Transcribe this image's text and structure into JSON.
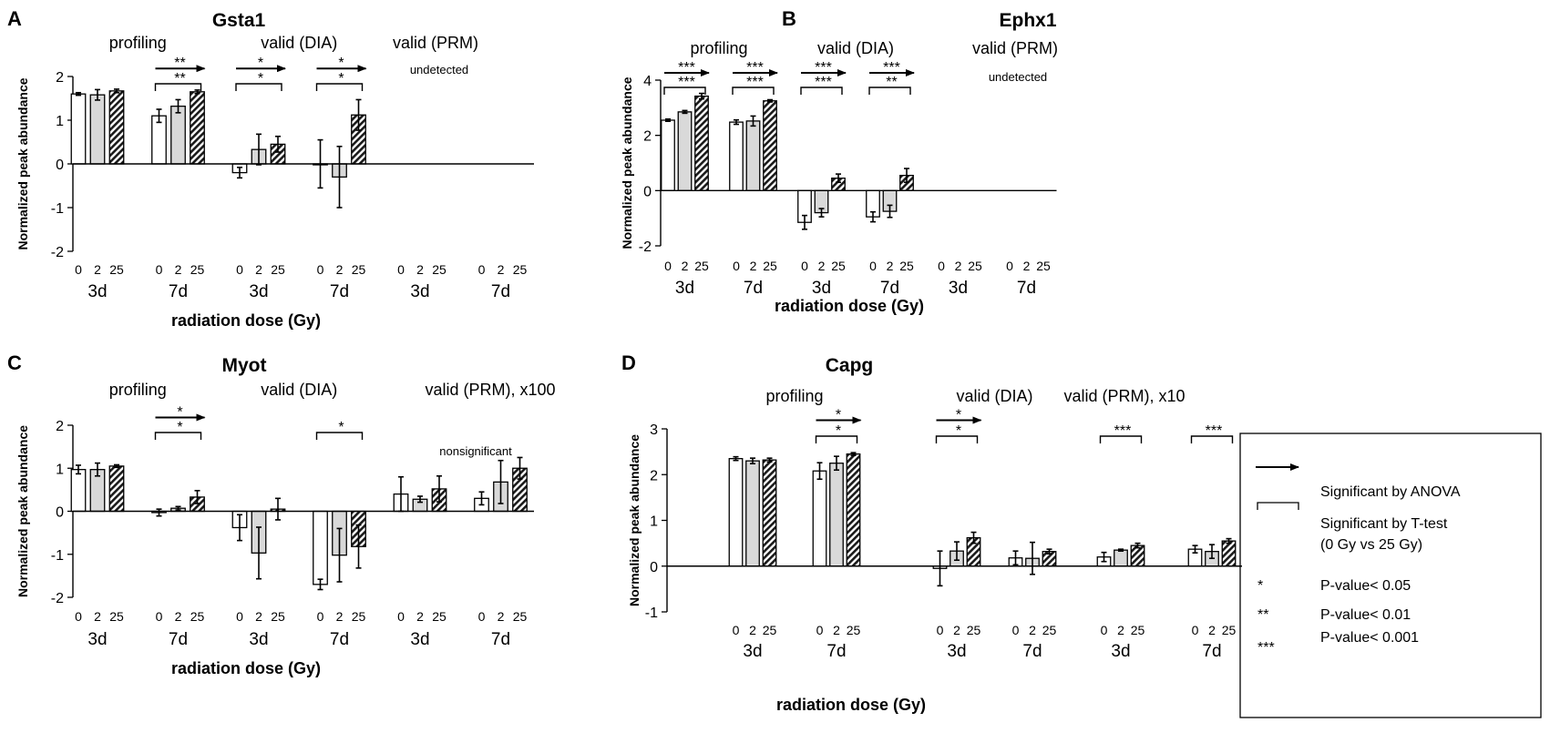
{
  "chart_data": [
    {
      "panel": "A",
      "title": "Gsta1",
      "type": "bar",
      "ylabel": "Normalized peak abundance",
      "xlabel": "radiation dose (Gy)",
      "ylim": [
        -2,
        2
      ],
      "yticks": [
        "-2",
        "-1",
        "0",
        "1",
        "2"
      ],
      "groups": [
        {
          "label": "profiling",
          "note": "",
          "clusters": [
            {
              "day": "3d",
              "doses": [
                "0",
                "2",
                "25"
              ],
              "values": [
                1.6,
                1.58,
                1.67
              ],
              "errors": [
                0.03,
                0.12,
                0.04
              ]
            },
            {
              "day": "7d",
              "doses": [
                "0",
                "2",
                "25"
              ],
              "values": [
                1.1,
                1.32,
                1.65
              ],
              "errors": [
                0.15,
                0.15,
                0.04
              ]
            }
          ]
        },
        {
          "label": "valid (DIA)",
          "note": "",
          "clusters": [
            {
              "day": "3d",
              "doses": [
                "0",
                "2",
                "25"
              ],
              "values": [
                -0.2,
                0.33,
                0.45
              ],
              "errors": [
                0.12,
                0.35,
                0.18
              ]
            },
            {
              "day": "7d",
              "doses": [
                "0",
                "2",
                "25"
              ],
              "values": [
                0.0,
                -0.3,
                1.12
              ],
              "errors": [
                0.55,
                0.7,
                0.35
              ]
            }
          ]
        },
        {
          "label": "valid (PRM)",
          "note": "undetected",
          "clusters": [
            {
              "day": "3d",
              "doses": [
                "0",
                "2",
                "25"
              ],
              "values": [
                null,
                null,
                null
              ],
              "errors": [
                null,
                null,
                null
              ]
            },
            {
              "day": "7d",
              "doses": [
                "0",
                "2",
                "25"
              ],
              "values": [
                null,
                null,
                null
              ],
              "errors": [
                null,
                null,
                null
              ]
            }
          ]
        }
      ],
      "significance": [
        {
          "cluster": 1,
          "anova": "**",
          "ttest": "**"
        },
        {
          "cluster": 2,
          "anova": "*",
          "ttest": "*"
        },
        {
          "cluster": 3,
          "anova": "*",
          "ttest": "*"
        }
      ]
    },
    {
      "panel": "B",
      "title": "Ephx1",
      "type": "bar",
      "ylabel": "Normalized peak abundance",
      "xlabel": "radiation dose (Gy)",
      "ylim": [
        -2,
        4
      ],
      "yticks": [
        "-2",
        "0",
        "2",
        "4"
      ],
      "groups": [
        {
          "label": "profiling",
          "note": "",
          "clusters": [
            {
              "day": "3d",
              "doses": [
                "0",
                "2",
                "25"
              ],
              "values": [
                2.55,
                2.85,
                3.42
              ],
              "errors": [
                0.04,
                0.05,
                0.1
              ]
            },
            {
              "day": "7d",
              "doses": [
                "0",
                "2",
                "25"
              ],
              "values": [
                2.48,
                2.52,
                3.25
              ],
              "errors": [
                0.08,
                0.18,
                0.04
              ]
            }
          ]
        },
        {
          "label": "valid (DIA)",
          "note": "",
          "clusters": [
            {
              "day": "3d",
              "doses": [
                "0",
                "2",
                "25"
              ],
              "values": [
                -1.15,
                -0.8,
                0.45
              ],
              "errors": [
                0.25,
                0.15,
                0.15
              ]
            },
            {
              "day": "7d",
              "doses": [
                "0",
                "2",
                "25"
              ],
              "values": [
                -0.95,
                -0.75,
                0.55
              ],
              "errors": [
                0.18,
                0.22,
                0.25
              ]
            }
          ]
        },
        {
          "label": "valid (PRM)",
          "note": "undetected",
          "clusters": [
            {
              "day": "3d",
              "doses": [
                "0",
                "2",
                "25"
              ],
              "values": [
                null,
                null,
                null
              ],
              "errors": [
                null,
                null,
                null
              ]
            },
            {
              "day": "7d",
              "doses": [
                "0",
                "2",
                "25"
              ],
              "values": [
                null,
                null,
                null
              ],
              "errors": [
                null,
                null,
                null
              ]
            }
          ]
        }
      ],
      "significance": [
        {
          "cluster": 0,
          "anova": "***",
          "ttest": "***"
        },
        {
          "cluster": 1,
          "anova": "***",
          "ttest": "***"
        },
        {
          "cluster": 2,
          "anova": "***",
          "ttest": "***"
        },
        {
          "cluster": 3,
          "anova": "***",
          "ttest": "**"
        }
      ]
    },
    {
      "panel": "C",
      "title": "Myot",
      "type": "bar",
      "ylabel": "Normalized peak abundance",
      "xlabel": "radiation dose (Gy)",
      "ylim": [
        -2,
        2
      ],
      "yticks": [
        "-2",
        "-1",
        "0",
        "1",
        "2"
      ],
      "groups": [
        {
          "label": "profiling",
          "note": "",
          "clusters": [
            {
              "day": "3d",
              "doses": [
                "0",
                "2",
                "25"
              ],
              "values": [
                0.97,
                0.97,
                1.05
              ],
              "errors": [
                0.1,
                0.15,
                0.03
              ]
            },
            {
              "day": "7d",
              "doses": [
                "0",
                "2",
                "25"
              ],
              "values": [
                -0.03,
                0.07,
                0.33
              ],
              "errors": [
                0.08,
                0.04,
                0.15
              ]
            }
          ]
        },
        {
          "label": "valid (DIA)",
          "note": "",
          "clusters": [
            {
              "day": "3d",
              "doses": [
                "0",
                "2",
                "25"
              ],
              "values": [
                -0.38,
                -0.97,
                0.05
              ],
              "errors": [
                0.3,
                0.6,
                0.25
              ]
            },
            {
              "day": "7d",
              "doses": [
                "0",
                "2",
                "25"
              ],
              "values": [
                -1.7,
                -1.02,
                -0.82
              ],
              "errors": [
                0.12,
                0.62,
                0.5
              ]
            }
          ]
        },
        {
          "label": "valid (PRM), x100",
          "note": "nonsignificant",
          "clusters": [
            {
              "day": "3d",
              "doses": [
                "0",
                "2",
                "25"
              ],
              "values": [
                0.4,
                0.28,
                0.52
              ],
              "errors": [
                0.4,
                0.07,
                0.3
              ]
            },
            {
              "day": "7d",
              "doses": [
                "0",
                "2",
                "25"
              ],
              "values": [
                0.3,
                0.68,
                1.0
              ],
              "errors": [
                0.15,
                0.5,
                0.25
              ]
            }
          ]
        }
      ],
      "significance": [
        {
          "cluster": 1,
          "anova": "*",
          "ttest": "*"
        },
        {
          "cluster": 3,
          "anova": "",
          "ttest": "*"
        }
      ]
    },
    {
      "panel": "D",
      "title": "Capg",
      "type": "bar",
      "ylabel": "Normalized peak abundance",
      "xlabel": "radiation dose (Gy)",
      "ylim": [
        -1,
        3
      ],
      "yticks": [
        "-1",
        "0",
        "1",
        "2",
        "3"
      ],
      "groups": [
        {
          "label": "profiling",
          "note": "",
          "clusters": [
            {
              "day": "3d",
              "doses": [
                "0",
                "2",
                "25"
              ],
              "values": [
                2.35,
                2.3,
                2.32
              ],
              "errors": [
                0.04,
                0.06,
                0.04
              ]
            },
            {
              "day": "7d",
              "doses": [
                "0",
                "2",
                "25"
              ],
              "values": [
                2.08,
                2.25,
                2.45
              ],
              "errors": [
                0.18,
                0.15,
                0.03
              ]
            }
          ]
        },
        {
          "label": "valid (DIA)",
          "note": "",
          "clusters": [
            {
              "day": "3d",
              "doses": [
                "0",
                "2",
                "25"
              ],
              "values": [
                -0.05,
                0.33,
                0.62
              ],
              "errors": [
                0.38,
                0.2,
                0.12
              ]
            },
            {
              "day": "7d",
              "doses": [
                "0",
                "2",
                "25"
              ],
              "values": [
                0.18,
                0.17,
                0.32
              ],
              "errors": [
                0.15,
                0.35,
                0.05
              ]
            }
          ]
        },
        {
          "label": "valid (PRM), x10",
          "note": "",
          "clusters": [
            {
              "day": "3d",
              "doses": [
                "0",
                "2",
                "25"
              ],
              "values": [
                0.2,
                0.35,
                0.45
              ],
              "errors": [
                0.1,
                0.02,
                0.05
              ]
            },
            {
              "day": "7d",
              "doses": [
                "0",
                "2",
                "25"
              ],
              "values": [
                0.37,
                0.32,
                0.55
              ],
              "errors": [
                0.08,
                0.15,
                0.05
              ]
            }
          ]
        }
      ],
      "significance": [
        {
          "cluster": 1,
          "anova": "*",
          "ttest": "*"
        },
        {
          "cluster": 2,
          "anova": "*",
          "ttest": "*"
        },
        {
          "cluster": 4,
          "anova": "",
          "ttest": "***"
        },
        {
          "cluster": 5,
          "anova": "",
          "ttest": "***"
        }
      ]
    }
  ],
  "legend": {
    "anova": "Significant by ANOVA",
    "ttest_line1": "Significant by T-test",
    "ttest_line2": "(0 Gy vs 25 Gy)",
    "p1_symbol": "*",
    "p1_text": "P-value< 0.05",
    "p2_symbol": "**",
    "p2_text": "P-value< 0.01",
    "p3_symbol": "***",
    "p3_text": "P-value< 0.001"
  },
  "colors": {
    "dose0": "#ffffff",
    "dose2": "#d9d9d9",
    "dose25_hatch": "#1a1a1a"
  }
}
